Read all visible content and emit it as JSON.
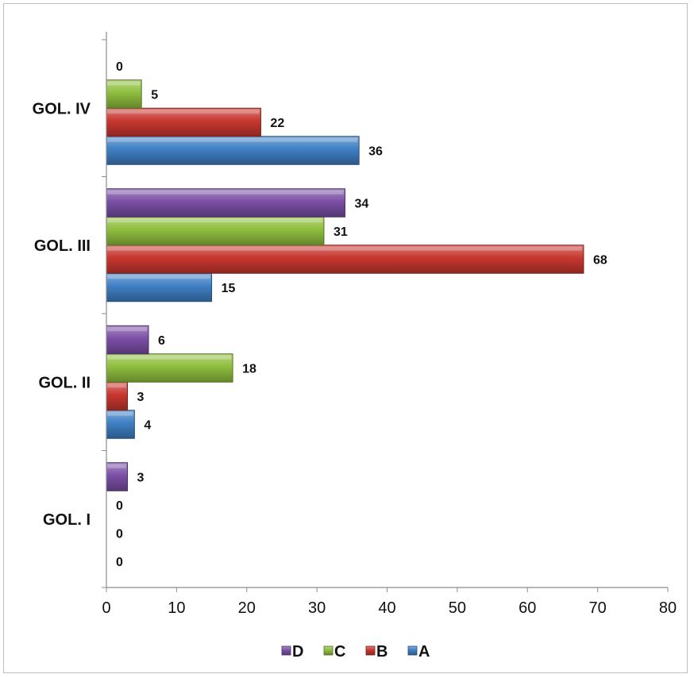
{
  "chart_data": {
    "type": "bar",
    "orientation": "horizontal",
    "categories": [
      "GOL. I",
      "GOL. II",
      "GOL. III",
      "GOL. IV"
    ],
    "series": [
      {
        "name": "A",
        "values": [
          0,
          4,
          15,
          36
        ],
        "color": "#3f7fc4"
      },
      {
        "name": "B",
        "values": [
          0,
          3,
          68,
          22
        ],
        "color": "#c8372f"
      },
      {
        "name": "C",
        "values": [
          0,
          18,
          31,
          5
        ],
        "color": "#8fbe3e"
      },
      {
        "name": "D",
        "values": [
          3,
          6,
          34,
          0
        ],
        "color": "#7b4fa6"
      }
    ],
    "xlim": [
      0,
      80
    ],
    "x_ticks": [
      "0",
      "10",
      "20",
      "30",
      "40",
      "50",
      "60",
      "70",
      "80"
    ],
    "grid": false,
    "legend": {
      "position": "bottom",
      "order": [
        "D",
        "C",
        "B",
        "A"
      ]
    },
    "title": "",
    "xlabel": "",
    "ylabel": ""
  }
}
